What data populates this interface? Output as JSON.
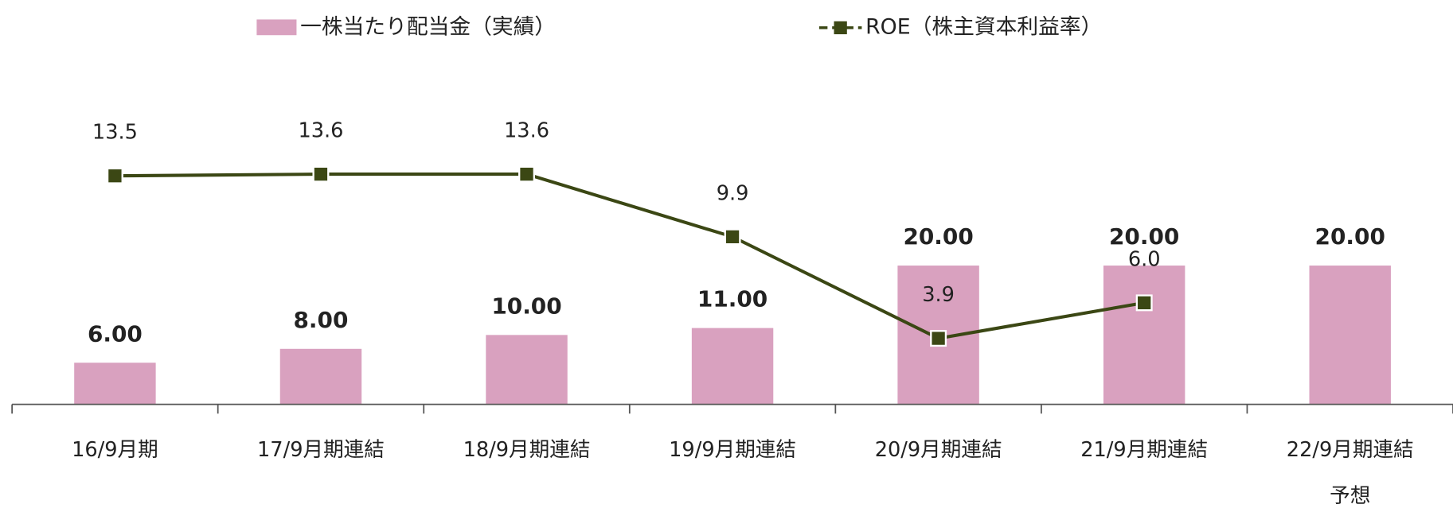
{
  "chart_data": {
    "type": "bar_line",
    "categories": [
      "16/9月期",
      "17/9月期連結",
      "18/9月期連結",
      "19/9月期連結",
      "20/9月期連結",
      "21/9月期連結",
      "22/9月期連結\n予想"
    ],
    "series": [
      {
        "name": "一株当たり配当金（実績）",
        "type": "bar",
        "color": "#d9a1bf",
        "values": [
          6,
          8,
          10,
          11,
          20,
          20,
          20
        ],
        "value_labels": [
          "6.00",
          "8.00",
          "10.00",
          "11.00",
          "20.00",
          "20.00",
          "20.00"
        ]
      },
      {
        "name": "ROE（株主資本利益率）",
        "type": "line",
        "axis": "y2",
        "color": "#3b4714",
        "values": [
          13.5,
          13.6,
          13.6,
          9.9,
          3.9,
          6.0,
          null
        ],
        "value_labels": [
          "13.5",
          "13.6",
          "13.6",
          "9.9",
          "3.9",
          "6.0",
          null
        ]
      }
    ],
    "ylim": [
      0,
      40
    ],
    "y2lim": [
      0,
      16.4
    ],
    "legend": "top"
  }
}
